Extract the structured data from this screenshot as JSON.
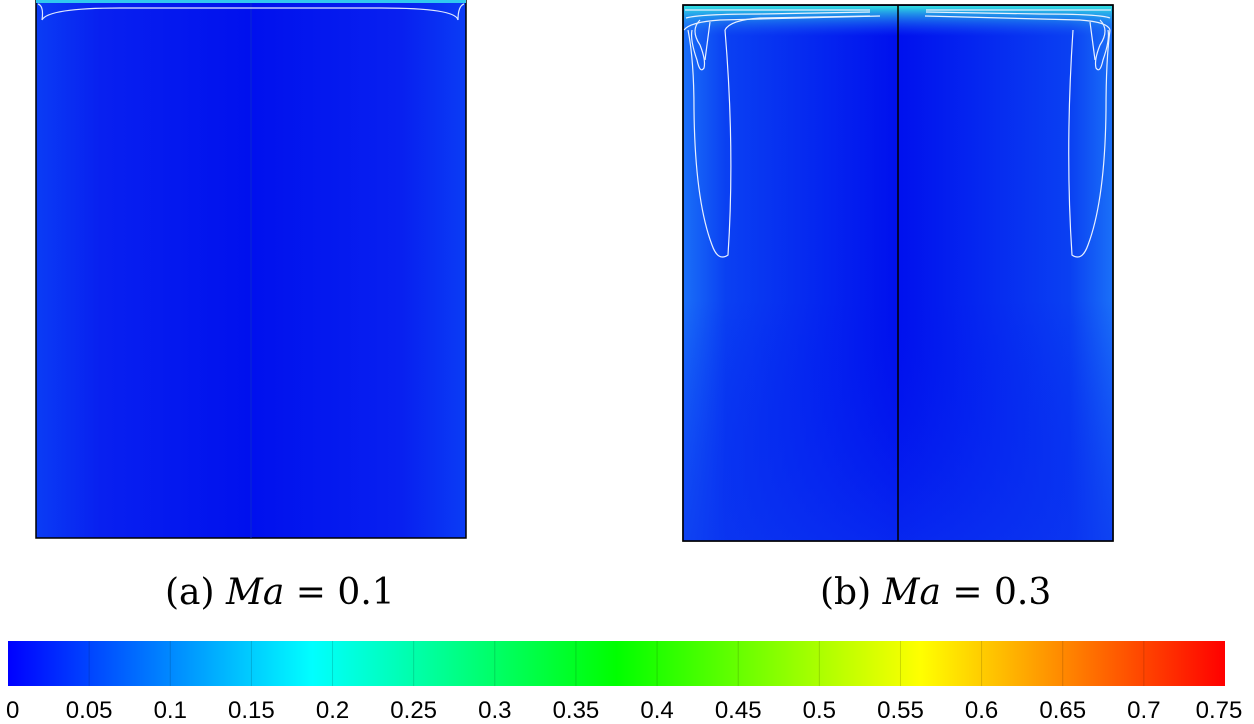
{
  "chart_data": {
    "type": "heatmap",
    "panels": [
      {
        "label": "(a)",
        "equation_var": "Ma",
        "equation_op": "=",
        "equation_value": "0.1",
        "max_contour_level": 0.15
      },
      {
        "label": "(b)",
        "equation_var": "Ma",
        "equation_op": "=",
        "equation_value": "0.3",
        "max_contour_level": 0.35
      }
    ],
    "colorbar": {
      "range": [
        0,
        0.75
      ],
      "ticks": [
        "0",
        "0.05",
        "0.1",
        "0.15",
        "0.2",
        "0.25",
        "0.3",
        "0.35",
        "0.4",
        "0.45",
        "0.5",
        "0.55",
        "0.6",
        "0.65",
        "0.7",
        "0.75"
      ],
      "colors": [
        "#0000ff",
        "#0040ff",
        "#0080ff",
        "#00c0ff",
        "#00ffff",
        "#00ffc0",
        "#00ff80",
        "#00ff40",
        "#00ff00",
        "#40ff00",
        "#80ff00",
        "#c0ff00",
        "#ffff00",
        "#ffc000",
        "#ff8000",
        "#ff4000",
        "#ff0000"
      ],
      "orientation": "horizontal",
      "placement": "bottom"
    }
  }
}
